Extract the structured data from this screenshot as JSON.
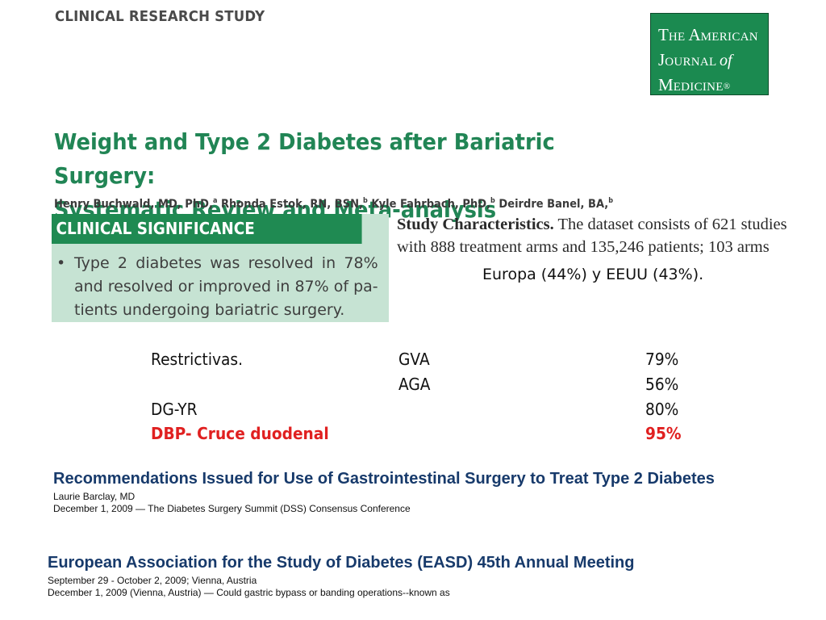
{
  "header": {
    "label": "CLINICAL RESEARCH STUDY"
  },
  "journal_logo": {
    "line1": [
      "T",
      "HE ",
      "A",
      "MERICAN"
    ],
    "line2": [
      "J",
      "OURNAL ",
      "of"
    ],
    "line3": [
      "M",
      "EDICINE",
      "®"
    ]
  },
  "article": {
    "title_line1": "Weight and Type 2 Diabetes after Bariatric Surgery:",
    "title_line2": "Systematic Review and Meta-analysis",
    "authors": [
      {
        "name": "Henry Buchwald, MD, PhD,",
        "sup": "a"
      },
      {
        "name": " Rhonda Estok, RN, BSN,",
        "sup": "b"
      },
      {
        "name": " Kyle Fahrbach, PhD,",
        "sup": "b"
      },
      {
        "name": " Deirdre Banel, BA,",
        "sup": "b"
      }
    ]
  },
  "clinical_significance": {
    "heading": "CLINICAL SIGNIFICANCE",
    "bullet": "•",
    "text": "Type 2 diabetes was resolved in 78% and resolved or improved in 87% of patients undergoing bariatric surgery.",
    "lines": [
      "Type 2 diabetes was resolved in 78%",
      "and resolved or improved in 87% of pa-",
      "tients undergoing bariatric surgery."
    ]
  },
  "study_characteristics": {
    "label": "Study Characteristics.",
    "line1_rest": " The dataset consists of 621 studies",
    "line2": "with 888 treatment arms and 135,246 patients; 103 arms"
  },
  "regions_note": "Europa (44%) y EEUU (43%).",
  "procedures": [
    {
      "group": "Restrictivas.",
      "procedure": "GVA",
      "value": "79%",
      "highlight": false
    },
    {
      "group": "",
      "procedure": "AGA",
      "value": "56%",
      "highlight": false
    },
    {
      "group": "DG-YR",
      "procedure": "",
      "value": "80%",
      "highlight": false
    },
    {
      "group": "DBP- Cruce duodenal",
      "procedure": "",
      "value": "95%",
      "highlight": true
    }
  ],
  "news": [
    {
      "title": "Recommendations Issued for Use of Gastrointestinal Surgery to Treat Type 2 Diabetes",
      "byline": "Laurie Barclay, MD",
      "dateline": "December 1, 2009 — The Diabetes Surgery Summit (DSS) Consensus Conference"
    },
    {
      "title": "European Association for the Study of Diabetes (EASD) 45th Annual Meeting",
      "byline": "September 29 - October 2, 2009; Vienna, Austria",
      "dateline": "December 1, 2009 (Vienna, Austria) — Could gastric bypass or banding operations--known as"
    }
  ],
  "colors": {
    "journal_green": "#1b8a50",
    "title_green": "#218555",
    "panel_green": "#c6e3d3",
    "highlight_red": "#e02020",
    "news_blue": "#173a6b"
  }
}
